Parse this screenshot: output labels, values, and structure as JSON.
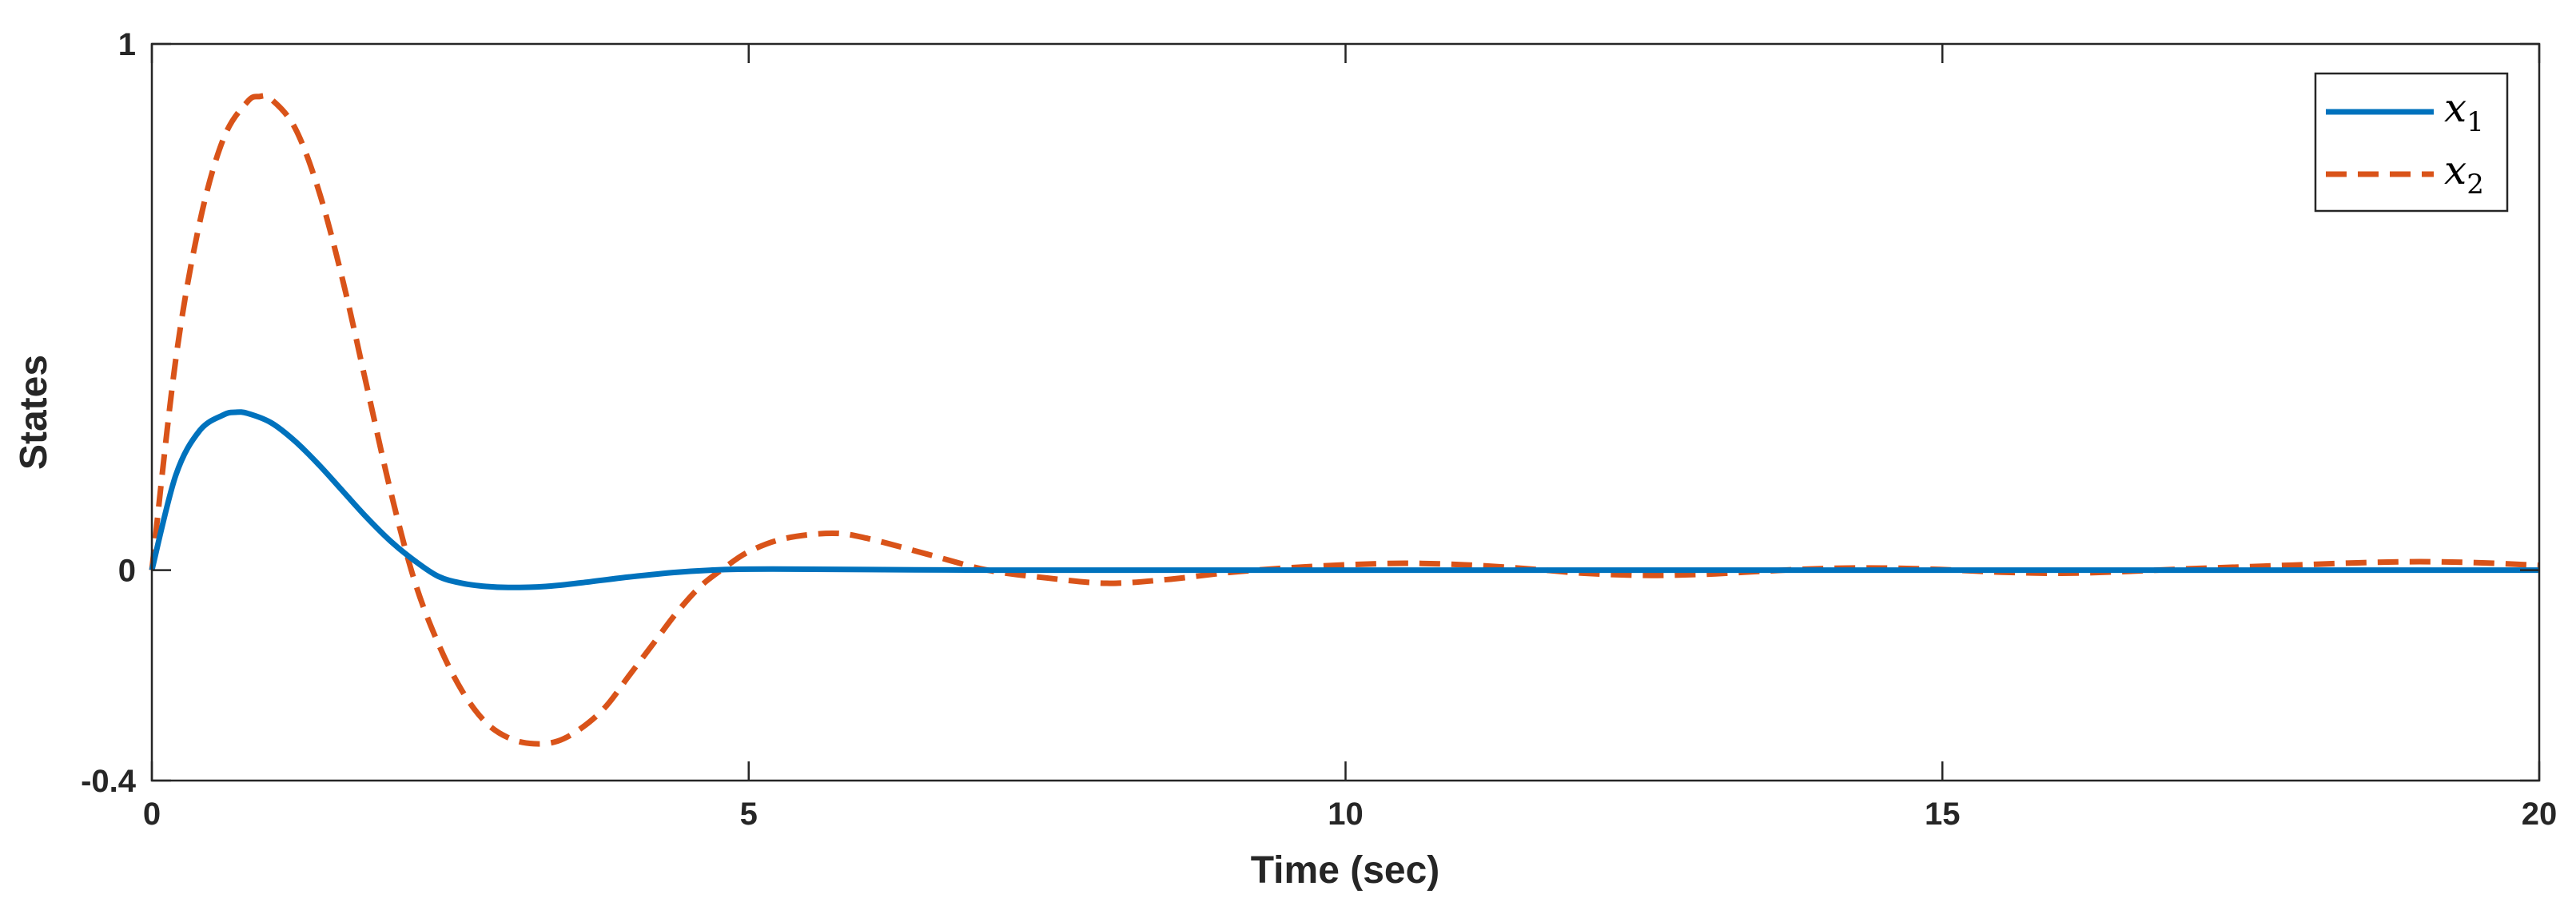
{
  "chart_data": {
    "type": "line",
    "title": "",
    "xlabel": "Time (sec)",
    "ylabel": "States",
    "xlim": [
      0,
      20
    ],
    "ylim": [
      -0.4,
      1
    ],
    "xticks": [
      0,
      5,
      10,
      15,
      20
    ],
    "xtick_labels": [
      "0",
      "5",
      "10",
      "15",
      "20"
    ],
    "yticks": [
      -0.4,
      0,
      1
    ],
    "ytick_labels": [
      "-0.4",
      "0",
      "1"
    ],
    "grid": false,
    "legend_position": "top-right",
    "series": [
      {
        "name": "x1",
        "legend_main": "x",
        "legend_sub": "1",
        "color": "#0072BD",
        "style": "solid",
        "x": [
          0,
          0.2,
          0.4,
          0.6,
          0.7,
          0.8,
          1.0,
          1.2,
          1.4,
          1.6,
          1.8,
          2.0,
          2.2,
          2.4,
          2.6,
          2.8,
          3.0,
          3.3,
          3.6,
          4.0,
          4.4,
          4.8,
          5.2,
          6.0,
          7.0,
          8.0,
          10.0,
          12.0,
          15.0,
          18.0,
          20.0
        ],
        "values": [
          0,
          0.18,
          0.265,
          0.295,
          0.3,
          0.298,
          0.28,
          0.245,
          0.2,
          0.15,
          0.1,
          0.055,
          0.018,
          -0.012,
          -0.025,
          -0.031,
          -0.033,
          -0.031,
          -0.024,
          -0.013,
          -0.004,
          0.001,
          0.002,
          0.001,
          0,
          0,
          0,
          0,
          0,
          0,
          0
        ]
      },
      {
        "name": "x2",
        "legend_main": "x",
        "legend_sub": "2",
        "color": "#D95319",
        "style": "dashed",
        "x": [
          0,
          0.2,
          0.4,
          0.6,
          0.8,
          0.9,
          1.0,
          1.2,
          1.4,
          1.6,
          1.8,
          2.0,
          2.2,
          2.4,
          2.6,
          2.8,
          3.0,
          3.2,
          3.4,
          3.6,
          3.8,
          4.0,
          4.2,
          4.4,
          4.6,
          4.8,
          5.0,
          5.3,
          5.7,
          6.0,
          6.5,
          7.0,
          7.5,
          8.0,
          8.5,
          9.0,
          9.5,
          10.0,
          10.5,
          11.0,
          11.5,
          12.0,
          12.5,
          13.0,
          13.5,
          14.0,
          14.5,
          15.0,
          15.5,
          16.0,
          16.5,
          17.0,
          17.5,
          18.0,
          18.5,
          19.0,
          19.5,
          20.0
        ],
        "values": [
          0,
          0.4,
          0.66,
          0.82,
          0.89,
          0.9,
          0.895,
          0.84,
          0.72,
          0.55,
          0.35,
          0.15,
          -0.02,
          -0.14,
          -0.23,
          -0.29,
          -0.32,
          -0.33,
          -0.325,
          -0.3,
          -0.26,
          -0.2,
          -0.14,
          -0.08,
          -0.03,
          0.005,
          0.035,
          0.06,
          0.07,
          0.06,
          0.03,
          0.0,
          -0.015,
          -0.025,
          -0.018,
          -0.005,
          0.004,
          0.01,
          0.013,
          0.01,
          0.003,
          -0.006,
          -0.01,
          -0.008,
          -0.002,
          0.003,
          0.004,
          0.001,
          -0.004,
          -0.006,
          -0.003,
          0.002,
          0.006,
          0.01,
          0.014,
          0.016,
          0.014,
          0.009
        ]
      }
    ]
  }
}
